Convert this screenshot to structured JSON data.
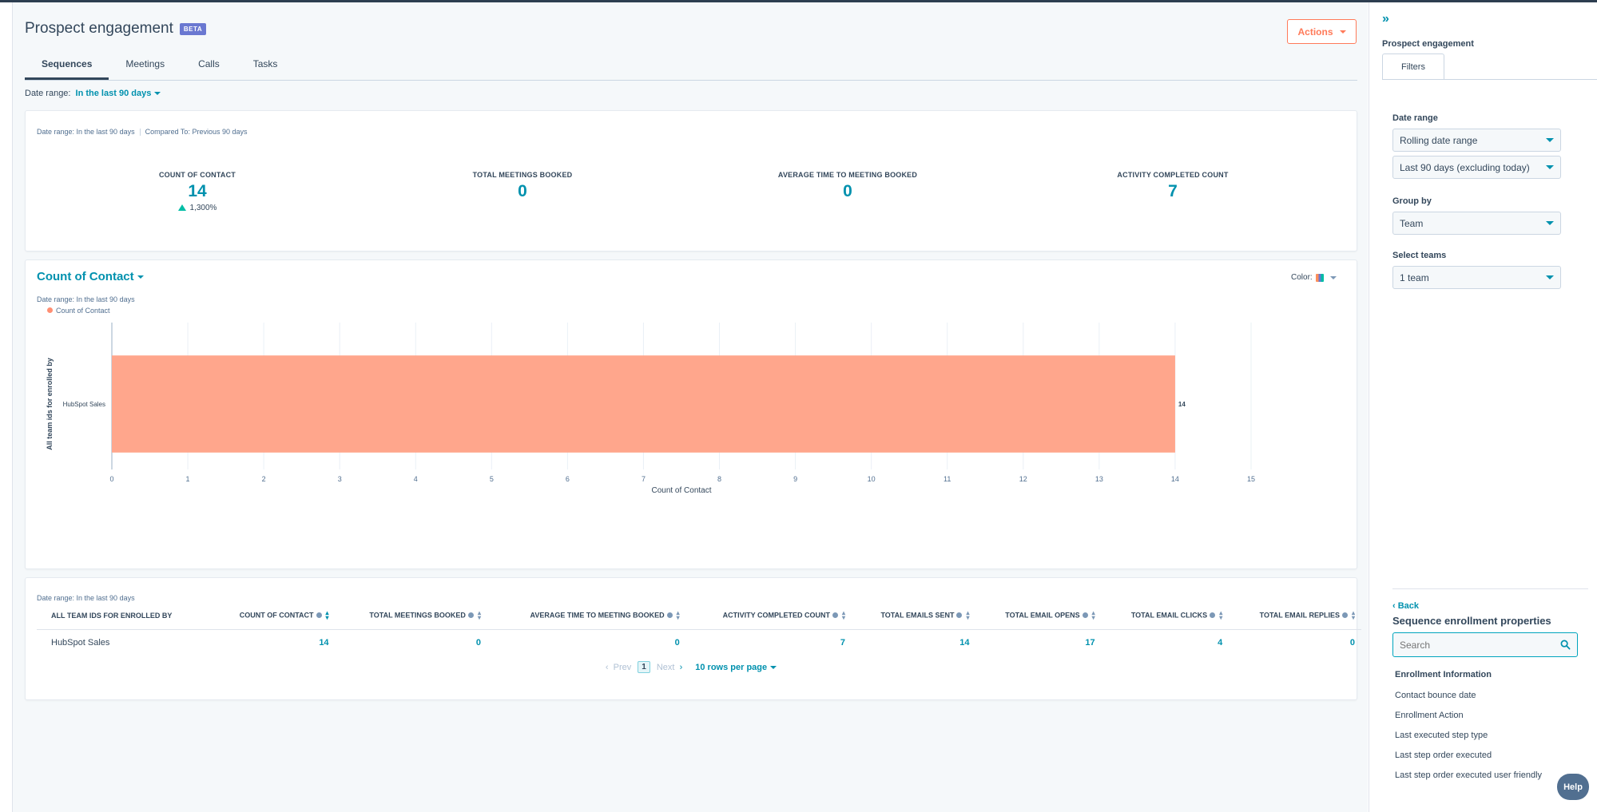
{
  "header": {
    "title": "Prospect engagement",
    "beta_badge": "BETA",
    "actions_label": "Actions"
  },
  "tabs": [
    {
      "label": "Sequences",
      "active": true
    },
    {
      "label": "Meetings",
      "active": false
    },
    {
      "label": "Calls",
      "active": false
    },
    {
      "label": "Tasks",
      "active": false
    }
  ],
  "date_filter": {
    "label": "Date range:",
    "value": "In the last 90 days"
  },
  "summary": {
    "meta_range": "Date range: In the last 90 days",
    "meta_compare": "Compared To: Previous 90 days",
    "kpis": [
      {
        "label": "COUNT OF CONTACT",
        "value": "14",
        "change": "1,300%"
      },
      {
        "label": "TOTAL MEETINGS BOOKED",
        "value": "0"
      },
      {
        "label": "AVERAGE TIME TO MEETING BOOKED",
        "value": "0"
      },
      {
        "label": "ACTIVITY COMPLETED COUNT",
        "value": "7"
      }
    ]
  },
  "chart_card": {
    "title": "Count of Contact",
    "color_label": "Color:",
    "meta_range": "Date range: In the last 90 days"
  },
  "chart_data": {
    "type": "bar",
    "orientation": "horizontal",
    "categories": [
      "HubSpot Sales"
    ],
    "series": [
      {
        "name": "Count of Contact",
        "values": [
          14
        ],
        "color": "#ffa68c"
      }
    ],
    "xlabel": "Count of Contact",
    "ylabel": "All team ids for enrolled by",
    "xlim": [
      0,
      15
    ],
    "x_ticks": [
      "0",
      "1",
      "2",
      "3",
      "4",
      "5",
      "6",
      "7",
      "8",
      "9",
      "10",
      "11",
      "12",
      "13",
      "14",
      "15"
    ],
    "data_labels": [
      "14"
    ],
    "grid": true,
    "legend_position": "top-left"
  },
  "table_card": {
    "meta_range": "Date range: In the last 90 days",
    "columns": [
      "ALL TEAM IDS FOR ENROLLED BY",
      "COUNT OF CONTACT",
      "TOTAL MEETINGS BOOKED",
      "AVERAGE TIME TO MEETING BOOKED",
      "ACTIVITY COMPLETED COUNT",
      "TOTAL EMAILS SENT",
      "TOTAL EMAIL OPENS",
      "TOTAL EMAIL CLICKS",
      "TOTAL EMAIL REPLIES"
    ],
    "rows": [
      [
        "HubSpot Sales",
        "14",
        "0",
        "0",
        "7",
        "14",
        "17",
        "4",
        "0"
      ]
    ],
    "pager": {
      "prev": "Prev",
      "page": "1",
      "next": "Next",
      "rows_per_page": "10 rows per page"
    }
  },
  "sidebar": {
    "heading": "Prospect engagement",
    "tab": "Filters",
    "date_range_label": "Date range",
    "date_range_type": "Rolling date range",
    "date_range_value": "Last 90 days (excluding today)",
    "group_by_label": "Group by",
    "group_by_value": "Team",
    "select_teams_label": "Select teams",
    "select_teams_value": "1 team",
    "back_label": "Back",
    "props_title": "Sequence enrollment properties",
    "search_placeholder": "Search",
    "group_header": "Enrollment Information",
    "properties": [
      "Contact bounce date",
      "Enrollment Action",
      "Last executed step type",
      "Last step order executed",
      "Last step order executed user friendly"
    ]
  },
  "help_label": "Help"
}
